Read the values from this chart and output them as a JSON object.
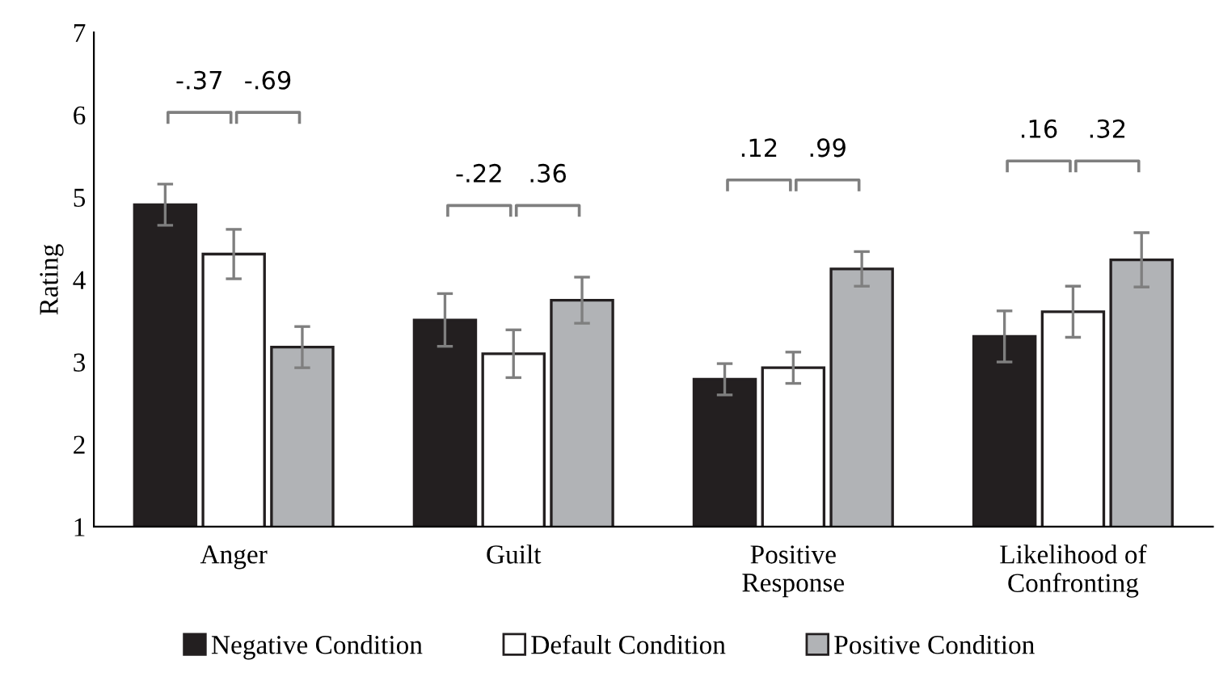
{
  "chart_data": {
    "type": "bar",
    "ylabel": "Rating",
    "categories": [
      "Anger",
      "Guilt",
      "Positive\nResponse",
      "Likelihood of\nConfronting"
    ],
    "series": [
      {
        "name": "Negative Condition",
        "color": "#231f20",
        "values": [
          4.91,
          3.51,
          2.79,
          3.31
        ],
        "errors": [
          0.25,
          0.32,
          0.19,
          0.31
        ]
      },
      {
        "name": "Default Condition",
        "color": "#ffffff",
        "values": [
          4.31,
          3.1,
          2.93,
          3.61
        ],
        "errors": [
          0.3,
          0.29,
          0.19,
          0.31
        ]
      },
      {
        "name": "Positive Condition",
        "color": "#b1b3b6",
        "values": [
          3.18,
          3.75,
          4.13,
          4.24
        ],
        "errors": [
          0.25,
          0.28,
          0.21,
          0.33
        ]
      }
    ],
    "ylim": [
      1,
      7
    ],
    "yticks": [
      1,
      2,
      3,
      4,
      5,
      6,
      7
    ],
    "grid": false,
    "legend": "bottom",
    "annotations": [
      "-.37",
      "-.69",
      "-.22",
      ".36",
      ".12",
      ".99",
      ".16",
      ".32"
    ]
  }
}
